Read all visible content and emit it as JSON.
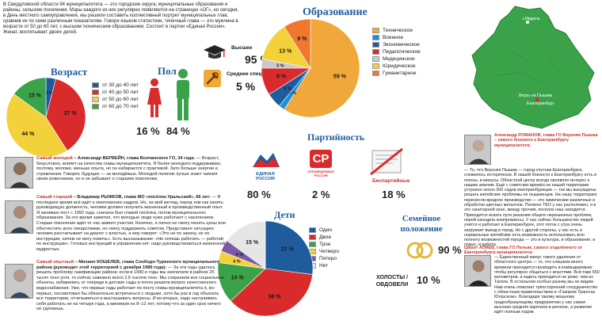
{
  "intro": {
    "text": "В Свердловской области 94 муниципалитета — это городские округа, муниципальные образования и районы, сельские поселения. Мэры каждого из них регулярно появляются на страницах «ОГ», но сегодня, в День местного самоуправления, мы решили составить коллективный портрет муниципальных глав, сравнив их по семи различным показателям. Говоря языком статистики, типичный глава — это мужчина в возрасте от 50 до 60 лет, с высшим техническим образованием. Состоит в партии «Единая Россия». Женат, воспитывает двоих детей."
  },
  "age": {
    "title": "Возраст",
    "legend": [
      "от 30 до 40 лет",
      "от 40 до 50 лет",
      "от 50 до 60 лет",
      "от 60 до 70 лет"
    ],
    "colors": [
      "#1f5c9e",
      "#d92b2b",
      "#f2d13a",
      "#3aa34a"
    ],
    "values": [
      4,
      37,
      44,
      15
    ],
    "labels": [
      "4 %",
      "37 %",
      "44 %",
      "15 %"
    ]
  },
  "gender": {
    "title": "Пол",
    "female": "16 %",
    "male": "84 %",
    "female_color": "#d92b2b",
    "male_color": "#3aa34a"
  },
  "education": {
    "title": "Образование",
    "higher_label": "Высшее",
    "higher_value": "95 %",
    "secondary_label": "Среднее специальное",
    "secondary_value": "5 %",
    "legend": [
      "Техническое",
      "Военное",
      "Экономическое",
      "Педагогическое",
      "Медицинское",
      "Юридическое",
      "Гуманитарное"
    ],
    "colors": [
      "#f0a83a",
      "#1f8fd6",
      "#1f5c9e",
      "#d92b2b",
      "#c9c9c9",
      "#f2d13a",
      "#f0772e"
    ],
    "values": [
      59,
      2,
      5,
      9,
      3,
      13,
      9
    ],
    "labels": [
      "59 %",
      "2 %",
      "5 %",
      "9 %",
      "3 %",
      "13 %",
      "9 %"
    ]
  },
  "party": {
    "title": "Партийность",
    "er_logo": "ЕДИНАЯ РОССИЯ",
    "er_value": "80 %",
    "sr_logo": "СПРАВЕДЛИВАЯ РОССИЯ",
    "sr_value": "2 %",
    "nonparty_label": "Беспартийные",
    "nonparty_value": "18 %"
  },
  "children": {
    "title": "Дети",
    "legend": [
      "Один",
      "Двое",
      "Трое",
      "Четверо",
      "Пятеро",
      "Нет"
    ],
    "colors": [
      "#1f5c9e",
      "#d92b2b",
      "#3aa34a",
      "#f2d13a",
      "#7b5aa6",
      "#e6e6e6"
    ],
    "values": [
      27,
      36,
      14,
      4,
      4,
      15
    ],
    "labels": [
      "27 %",
      "36 %",
      "14 %",
      "4 %",
      "4 %",
      "15 %"
    ]
  },
  "family": {
    "title": "Семейное положение",
    "married_value": "90 %",
    "single_label": "ХОЛОСТЫ / ОВДОВЕЛИ",
    "single_value": "10 %"
  },
  "map": {
    "ivdel": "г.Ивдель",
    "pyshma": "Верхняя Пышма",
    "ekb": "Екатеринбург"
  },
  "bios": [
    {
      "tag": "Самый молодой",
      "name": "– Александр ВЕРВЕЙН, глава Волчанского ГО, 34 года:",
      "text": "— Возраст, безусловно, влияет на качества главы муниципалитета. Я более молодого поддерживаю, поэтому, моложе, меньше опыта, но он набирается с практикой. Зато больше энергии и стремления. Говорят, будущее — за молодёжью. Молодой политик лучше знает чаяния своих ровесников, но и не забывает о старшем поколении."
    },
    {
      "tag": "Самый старший",
      "name": "– Владимир РЫЖКОВ, глава МО «посёлок Уральский», 66 лет:",
      "text": "— В последнее время всё идёт к омоложению кадров. Но, на мой взгляд, перед тем как занять руководящую должность, человек должен получить жизненный и производственный опыт. Я занимаю пост с 1992 года, сначала был главой посёлка, потом муниципального образования. За это время заметил, что молодые люди хуже работают с населением. Старше поколение идёт от нас живого участия. Конечно, я лично не смогу понять цены или обесчестить всех лекарствами, но смогу поддержать советом. Представьте ситуацию: человек рассчитывает на диалог с властью, а ему говорят: «Это не по закону, не по инструкции, ничем не могу помочь». Есть высказывание: «Не хочешь работать — работай по инструкции». Готовых инструкций в управлении нет: надо руководствоваться жизненной мудростью."
    },
    {
      "tag": "Самый опытный",
      "name": "– Михаил КОШЕЛЕВ, глава Слободо-Туринского муниципального района (руководит этой территорией с декабря 1989 года):",
      "text": "— За эти годы удалось решить проблему газификации района: если в 1990-е годы мы заплатили в районе 25 тысяч тонн угля, то сейчас завезено всего 2,5 тысячи тонн. Мы сохранили все социальные объекты, избавились от очереди в детские сады и почти решили вопрос качественного водоснабжения. Уже, что первые годы работает по посту главы муниципалитета я, во-первых, посоветовал бы обязательно встречаться с людьми, хотя бы раз в год объехать все территории, отчитываться и выслушивать вопросы. И во-вторых, надо настраивать себя работать не на четыре года, а минимум на 8–12 лет, потому что за один срок ничего не сделаешь."
    },
    {
      "tag": "",
      "name": "Александр РОМАНОВ, глава ГО Верхняя Пышма – самого близкого к Екатеринбургу муниципалитета:",
      "text": "— То, что Верхняя Пышма — город-спутник Екатеринбурга, сложилось исторически. В нашей близости к Екатеринбургу есть и плюсы, и минусы. Областной центр всегда проявлял интерес к нашим землям. Ещё с советских времён на нашей территории устроено около 300 садов екатеринбуржцев — так мы вынуждены решать житейские проблемы не пышминцев. На нашу территорию перенесли вредное производство — это химические различные и обработки цветных металлов. Полигон ТБО у нас расположен, я в это санитарной зоне, между прочим, посёлок наш находится. Приходится искать пути решения общего нерешенных проблем, порой находить компромиссы. У нас сейчас большинство людей учится и работает в Екатеринбурге, этот поток с утра очень загружает выезд в город. Но с другой стороны, у нас есть и нормальные житейские есть возможность использовать всю полноту возможностей города — это и культура, и образование, и отдых, и работа."
    },
    {
      "tag": "",
      "name": "Шахит АЛИЕВ, глава ГО Пелым, самого отдалённого от Екатеринбурга муниципалитета:",
      "text": "— Единственный минус такого удаления от областного центра — то, что слишком много времени приходится проводить в командировках: чтобы регулярно общаться с властями. Всё-таки 650 километров, а ездить приходится не реже, чем из Тагила. В остальном особых разниц мы не видим. Нам очень помогает трёхсторонний сотрудничество с областным правительством и «Газпром Трансгаз Югорском». Благодаря такому мощному градообразующему предприятию у нас самая высокая средняя зарплата в регионе, а развитие идёт полным ходом."
    }
  ]
}
